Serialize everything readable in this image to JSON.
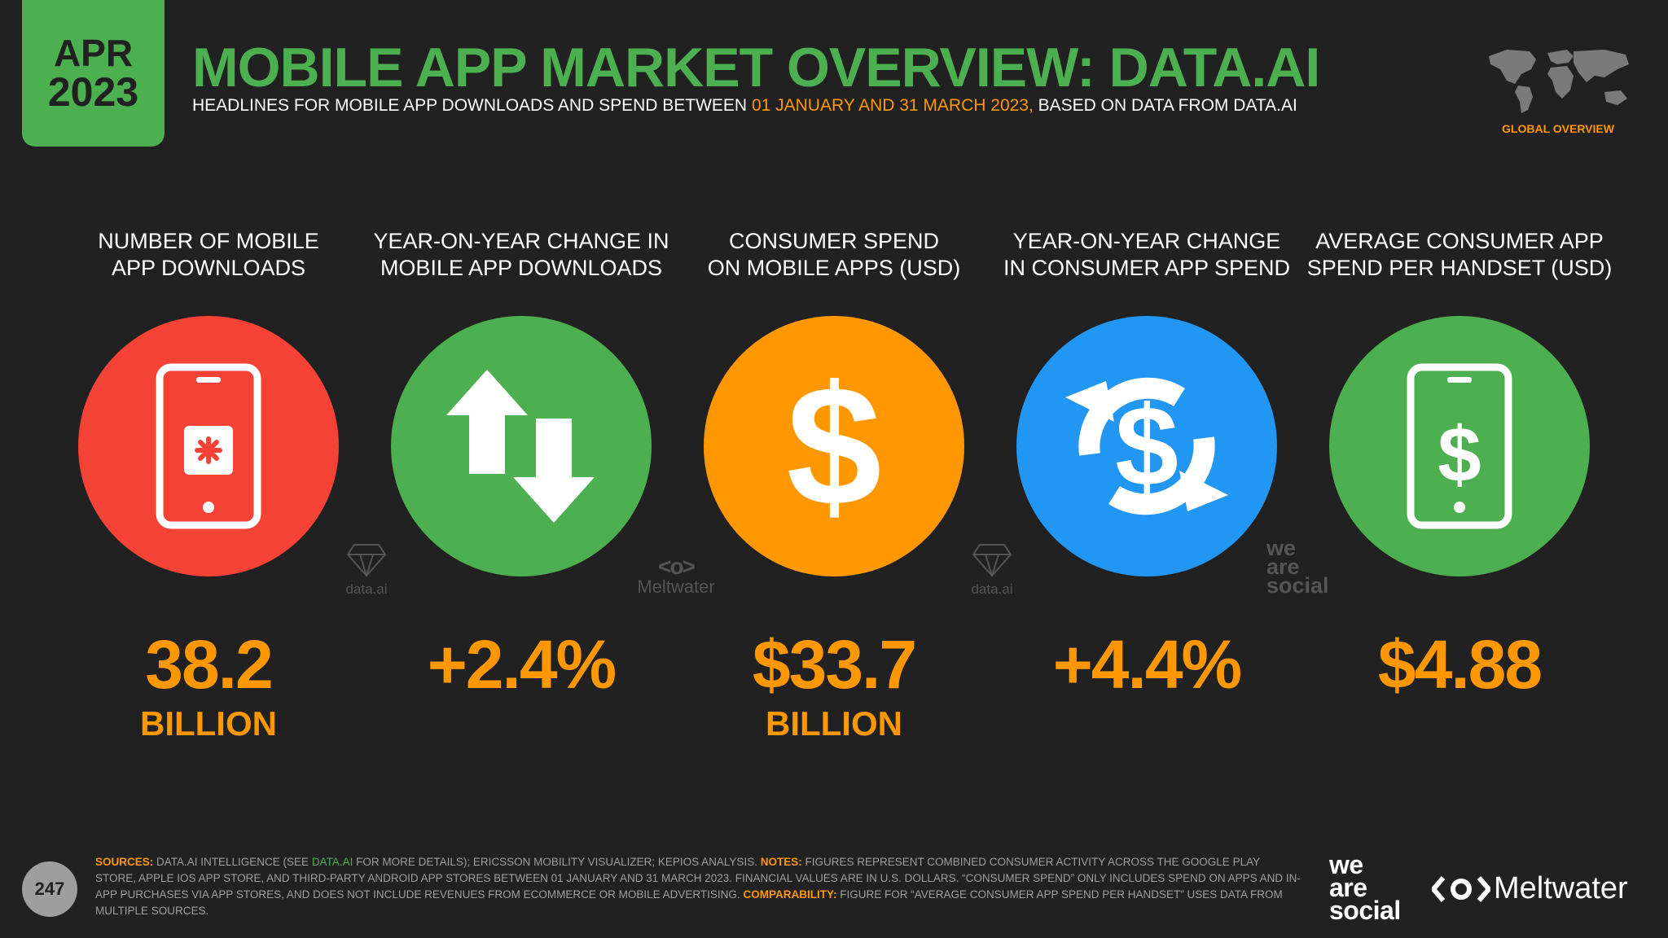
{
  "badge": {
    "month": "APR",
    "year": "2023"
  },
  "header": {
    "title": "MOBILE APP MARKET OVERVIEW: DATA.AI",
    "subtitle_before": "HEADLINES FOR MOBILE APP DOWNLOADS AND SPEND BETWEEN ",
    "subtitle_highlight": "01 JANUARY AND 31 MARCH 2023,",
    "subtitle_after": " BASED ON DATA FROM DATA.AI",
    "region_label": "GLOBAL OVERVIEW"
  },
  "stats": [
    {
      "label": "NUMBER OF MOBILE\nAPP DOWNLOADS",
      "value": "38.2",
      "unit": "BILLION",
      "color": "#f44336",
      "icon": "phone-app-icon"
    },
    {
      "label": "YEAR-ON-YEAR CHANGE IN\nMOBILE APP DOWNLOADS",
      "value": "+2.4%",
      "unit": "",
      "color": "#4caf50",
      "icon": "up-down-arrows-icon"
    },
    {
      "label": "CONSUMER SPEND\nON MOBILE APPS (USD)",
      "value": "$33.7",
      "unit": "BILLION",
      "color": "#ff9800",
      "icon": "dollar-icon"
    },
    {
      "label": "YEAR-ON-YEAR CHANGE\nIN CONSUMER APP SPEND",
      "value": "+4.4%",
      "unit": "",
      "color": "#2196f3",
      "icon": "dollar-cycle-icon"
    },
    {
      "label": "AVERAGE CONSUMER APP\nSPEND PER HANDSET (USD)",
      "value": "$4.88",
      "unit": "",
      "color": "#4caf50",
      "icon": "phone-dollar-icon"
    }
  ],
  "watermarks": {
    "dataai": "data.ai",
    "meltwater": "Meltwater",
    "was_line1": "we",
    "was_line2": "are",
    "was_line3": "social"
  },
  "footer": {
    "sources_key": "SOURCES:",
    "sources_text_1": " DATA.AI INTELLIGENCE (SEE ",
    "sources_link": "DATA.AI",
    "sources_text_2": " FOR MORE DETAILS); ERICSSON MOBILITY VISUALIZER; KEPIOS ANALYSIS. ",
    "notes_key": "NOTES:",
    "notes_text": " FIGURES REPRESENT COMBINED CONSUMER ACTIVITY ACROSS THE GOOGLE PLAY STORE, APPLE IOS APP STORE, AND THIRD-PARTY ANDROID APP STORES BETWEEN 01 JANUARY AND 31 MARCH 2023. FINANCIAL VALUES ARE IN U.S. DOLLARS. “CONSUMER SPEND” ONLY INCLUDES SPEND ON APPS AND IN-APP PURCHASES VIA APP STORES, AND DOES NOT INCLUDE REVENUES FROM ECOMMERCE OR MOBILE ADVERTISING. ",
    "comparability_key": "COMPARABILITY:",
    "comparability_text": " FIGURE FOR “AVERAGE CONSUMER APP SPEND PER HANDSET” USES DATA FROM MULTIPLE SOURCES.",
    "page_number": "247"
  },
  "logos": {
    "was_line1": "we",
    "was_line2": "are",
    "was_line3": "social",
    "meltwater": "Meltwater"
  }
}
